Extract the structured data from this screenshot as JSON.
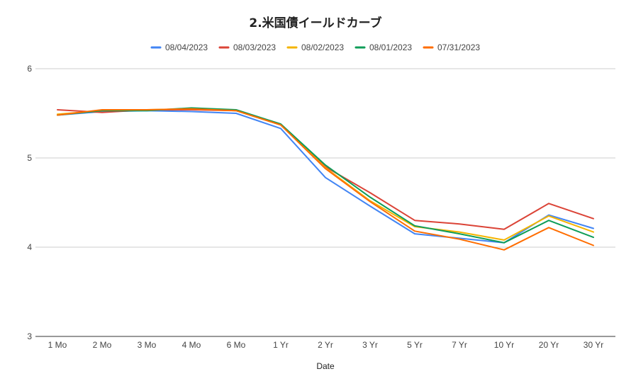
{
  "chart_data": {
    "type": "line",
    "title": "2.米国債イールドカーブ",
    "xlabel": "Date",
    "ylabel": "",
    "ylim": [
      3,
      6
    ],
    "yticks": [
      3,
      4,
      5,
      6
    ],
    "grid": true,
    "legend_position": "top",
    "categories": [
      "1 Mo",
      "2 Mo",
      "3 Mo",
      "4 Mo",
      "6 Mo",
      "1 Yr",
      "2 Yr",
      "3 Yr",
      "5 Yr",
      "7 Yr",
      "10 Yr",
      "20 Yr",
      "30 Yr"
    ],
    "series": [
      {
        "name": "08/04/2023",
        "color": "#4285f4",
        "values": [
          5.48,
          5.52,
          5.53,
          5.52,
          5.5,
          5.33,
          4.78,
          4.46,
          4.15,
          4.1,
          4.05,
          4.36,
          4.21
        ]
      },
      {
        "name": "08/03/2023",
        "color": "#db4437",
        "values": [
          5.54,
          5.51,
          5.54,
          5.54,
          5.53,
          5.37,
          4.9,
          4.61,
          4.3,
          4.26,
          4.2,
          4.49,
          4.32
        ]
      },
      {
        "name": "08/02/2023",
        "color": "#f4b400",
        "values": [
          5.49,
          5.53,
          5.54,
          5.55,
          5.53,
          5.37,
          4.89,
          4.52,
          4.23,
          4.17,
          4.08,
          4.35,
          4.17
        ]
      },
      {
        "name": "08/01/2023",
        "color": "#0f9d58",
        "values": [
          5.48,
          5.53,
          5.53,
          5.56,
          5.54,
          5.38,
          4.92,
          4.56,
          4.24,
          4.15,
          4.05,
          4.3,
          4.11
        ]
      },
      {
        "name": "07/31/2023",
        "color": "#ff6d00",
        "values": [
          5.48,
          5.54,
          5.54,
          5.55,
          5.53,
          5.37,
          4.88,
          4.51,
          4.18,
          4.09,
          3.97,
          4.22,
          4.02
        ]
      }
    ]
  }
}
